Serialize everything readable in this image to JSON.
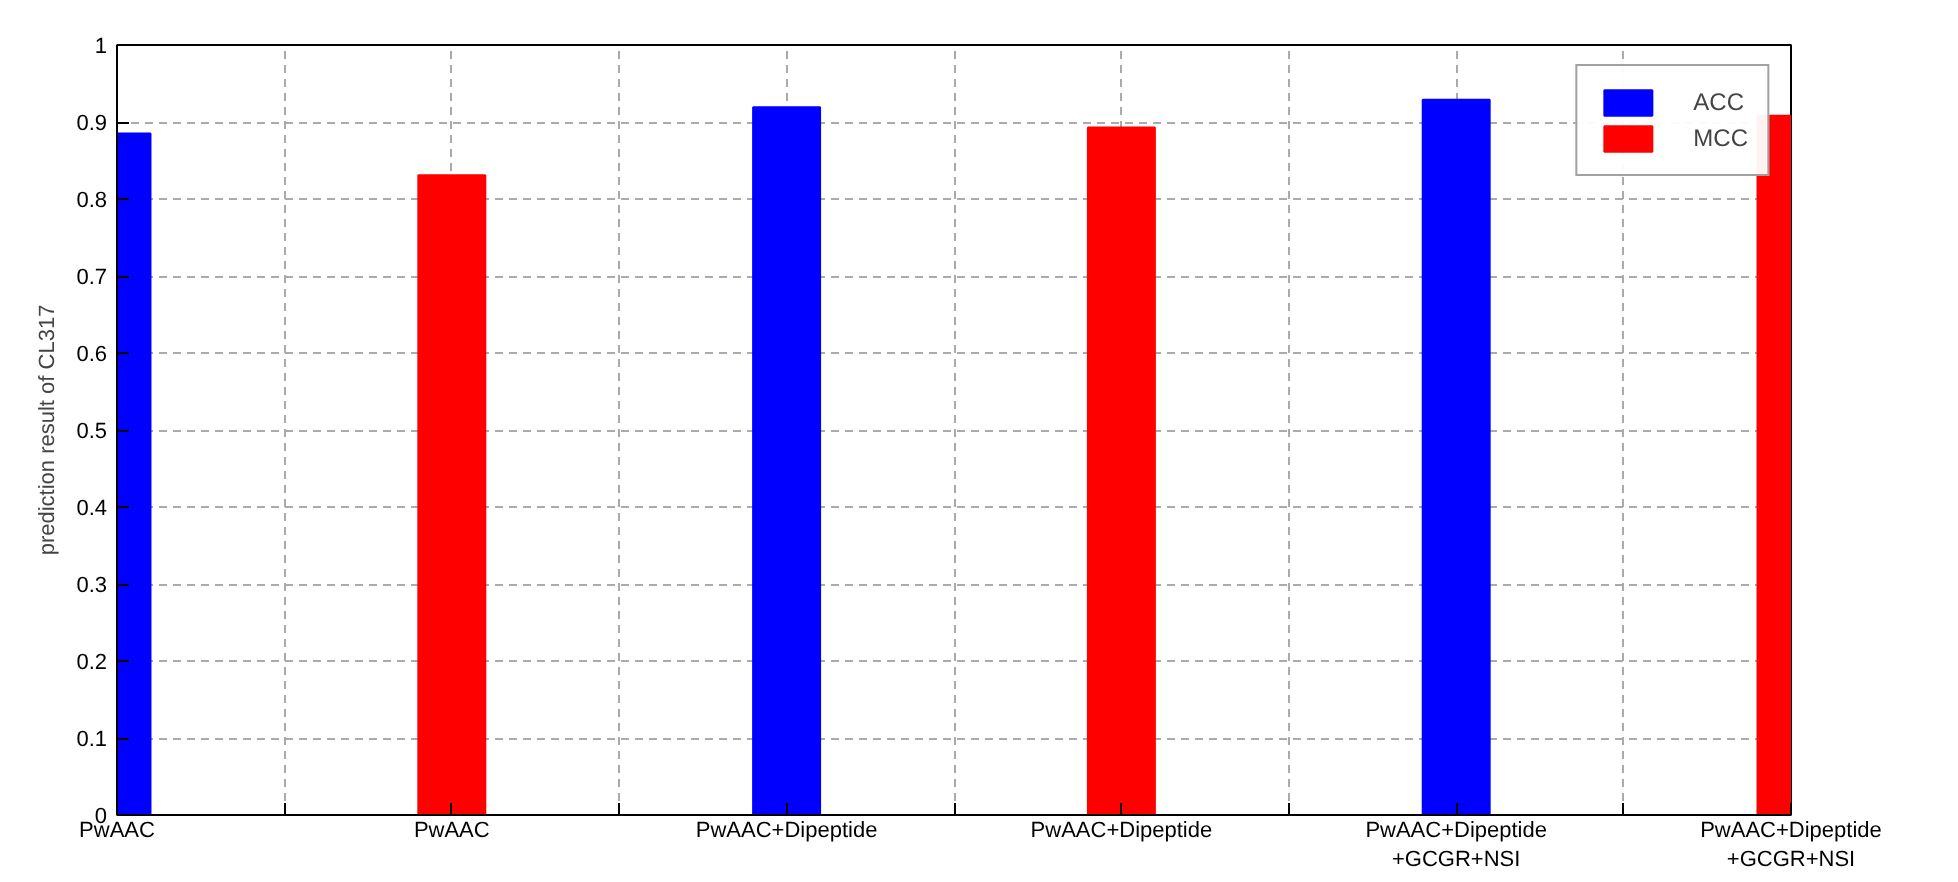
{
  "chart_data": {
    "type": "bar",
    "ylabel": "prediction result of CL317",
    "categories": [
      "PwAAC",
      "PwAAC",
      "PwAAC+Dipeptide",
      "PwAAC+Dipeptide",
      "PwAAC+Dipeptide\n+GCGR+NSI",
      "PwAAC+Dipeptide\n+GCGR+NSI"
    ],
    "series": [
      {
        "name": "ACC",
        "color": "#0000ff",
        "values": [
          0.885,
          null,
          0.919,
          null,
          0.929,
          null
        ]
      },
      {
        "name": "MCC",
        "color": "#ff0000",
        "values": [
          null,
          0.831,
          null,
          0.893,
          null,
          0.908
        ]
      }
    ],
    "ylim": [
      0,
      1
    ],
    "yticks": [
      0,
      0.1,
      0.2,
      0.3,
      0.4,
      0.5,
      0.6,
      0.7,
      0.8,
      0.9,
      1
    ],
    "grid": true,
    "legend": "top right"
  }
}
